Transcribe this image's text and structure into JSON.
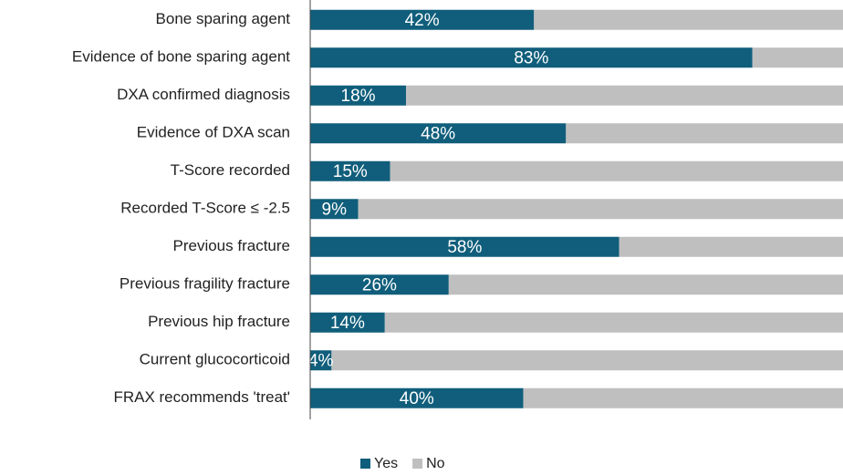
{
  "chart_data": {
    "type": "stacked_barh",
    "categories": [
      "Bone sparing agent",
      "Evidence of bone sparing agent",
      "DXA confirmed diagnosis",
      "Evidence of DXA scan",
      "T-Score recorded",
      "Recorded T-Score ≤ -2.5",
      "Previous fracture",
      "Previous fragility fracture",
      "Previous hip fracture",
      "Current glucocorticoid",
      "FRAX recommends 'treat'"
    ],
    "series": [
      {
        "name": "Yes",
        "color": "#105e7b",
        "values": [
          42,
          83,
          18,
          48,
          15,
          9,
          58,
          26,
          14,
          4,
          40
        ],
        "value_labels": [
          "42%",
          "83%",
          "18%",
          "48%",
          "15%",
          "9%",
          "58%",
          "26%",
          "14%",
          "4%",
          "40%"
        ]
      },
      {
        "name": "No",
        "color": "#bfbfbf",
        "values": [
          58,
          17,
          82,
          52,
          85,
          91,
          42,
          74,
          86,
          96,
          60
        ]
      }
    ],
    "xlim": [
      0,
      100
    ],
    "legend": "bottom"
  }
}
